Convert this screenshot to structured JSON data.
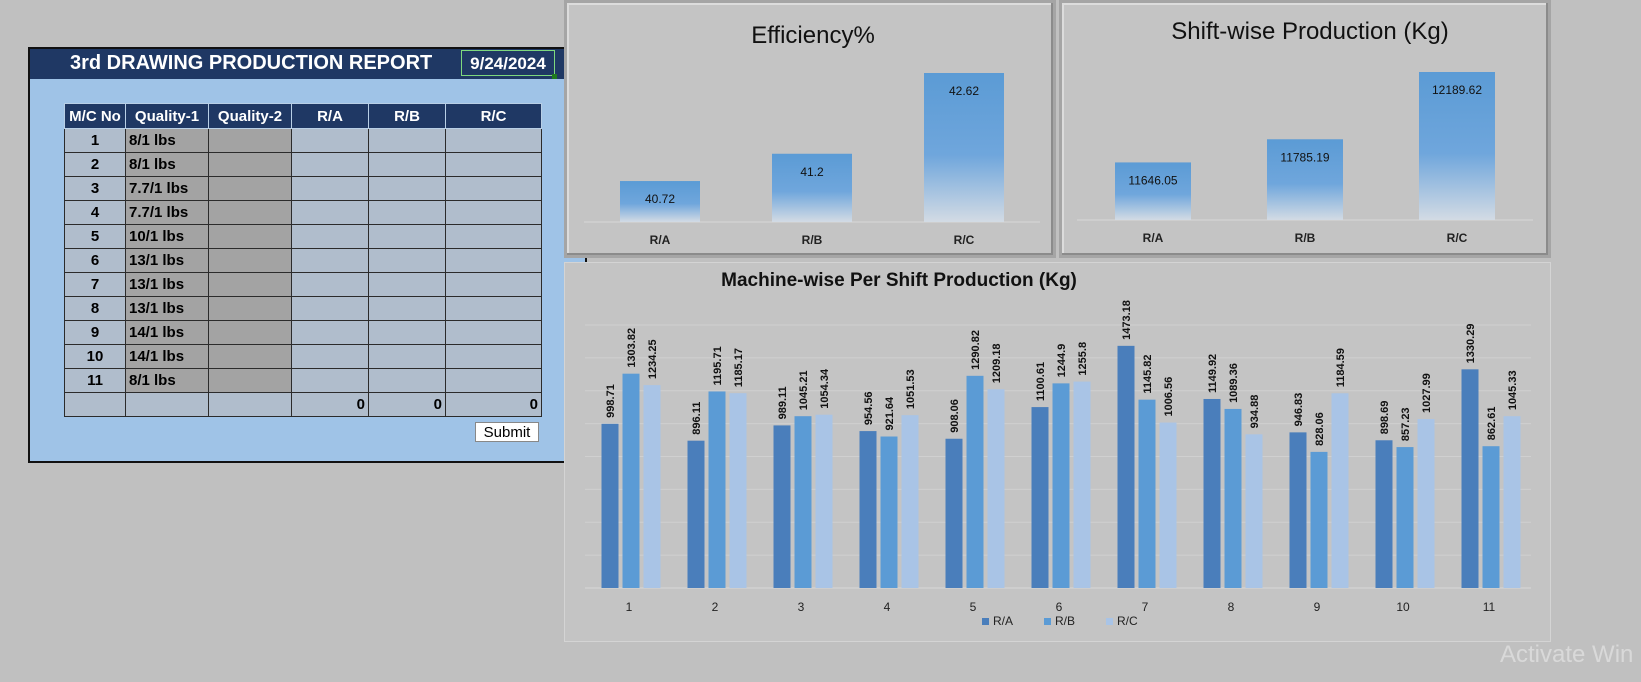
{
  "report": {
    "title": "3rd DRAWING PRODUCTION REPORT",
    "date": "9/24/2024",
    "columns": [
      "M/C No",
      "Quality-1",
      "Quality-2",
      "R/A",
      "R/B",
      "R/C"
    ],
    "rows": [
      {
        "no": "1",
        "q1": "8/1 lbs"
      },
      {
        "no": "2",
        "q1": "8/1 lbs"
      },
      {
        "no": "3",
        "q1": "7.7/1 lbs"
      },
      {
        "no": "4",
        "q1": "7.7/1 lbs"
      },
      {
        "no": "5",
        "q1": "10/1 lbs"
      },
      {
        "no": "6",
        "q1": "13/1 lbs"
      },
      {
        "no": "7",
        "q1": "13/1 lbs"
      },
      {
        "no": "8",
        "q1": "13/1 lbs"
      },
      {
        "no": "9",
        "q1": "14/1 lbs"
      },
      {
        "no": "10",
        "q1": "14/1 lbs"
      },
      {
        "no": "11",
        "q1": "8/1 lbs"
      }
    ],
    "totals": {
      "ra": "0",
      "rb": "0",
      "rc": "0"
    },
    "submit_label": "Submit"
  },
  "colors": {
    "header_navy": "#1f3864",
    "form_blue": "#9fc3e7",
    "ra": "#4a7ebb",
    "rb": "#5b9bd5",
    "rc": "#a9c4e6"
  },
  "watermark": "Activate Win",
  "chart_data": [
    {
      "type": "bar",
      "title": "Efficiency%",
      "categories": [
        "R/A",
        "R/B",
        "R/C"
      ],
      "values": [
        40.72,
        41.2,
        42.62
      ],
      "value_labels": [
        "40.72",
        "41.2",
        "42.62"
      ],
      "grid": false,
      "legend": "none"
    },
    {
      "type": "bar",
      "title": "Shift-wise Production (Kg)",
      "categories": [
        "R/A",
        "R/B",
        "R/C"
      ],
      "values": [
        11646.05,
        11785.19,
        12189.62
      ],
      "value_labels": [
        "11646.05",
        "11785.19",
        "12189.62"
      ],
      "grid": false,
      "legend": "none"
    },
    {
      "type": "bar",
      "title": "Machine-wise Per Shift Production (Kg)",
      "categories": [
        "1",
        "2",
        "3",
        "4",
        "5",
        "6",
        "7",
        "8",
        "9",
        "10",
        "11"
      ],
      "series": [
        {
          "name": "R/A",
          "values": [
            998.71,
            896.11,
            989.11,
            954.56,
            908.06,
            1100.61,
            1473.18,
            1149.92,
            946.83,
            898.69,
            1330.29
          ],
          "labels": [
            "998.71",
            "896.11",
            "989.11",
            "954.56",
            "908.06",
            "1100.61",
            "1473.18",
            "1149.92",
            "946.83",
            "898.69",
            "1330.29"
          ]
        },
        {
          "name": "R/B",
          "values": [
            1303.82,
            1195.71,
            1045.21,
            921.64,
            1290.82,
            1244.9,
            1145.82,
            1089.36,
            828.06,
            857.23,
            862.61
          ],
          "labels": [
            "1303.82",
            "1195.71",
            "1045.21",
            "921.64",
            "1290.82",
            "1244.9",
            "1145.82",
            "1089.36",
            "828.06",
            "857.23",
            "862.61"
          ]
        },
        {
          "name": "R/C",
          "values": [
            1234.25,
            1185.17,
            1054.34,
            1051.53,
            1209.18,
            1255.8,
            1006.56,
            934.88,
            1184.59,
            1027.99,
            1045.33
          ],
          "labels": [
            "1234.25",
            "1185.17",
            "1054.34",
            "1051.53",
            "1209.18",
            "1255.8",
            "1006.56",
            "934.88",
            "1184.59",
            "1027.99",
            "1045.33"
          ]
        }
      ],
      "ylim": [
        0,
        1600
      ],
      "grid": true,
      "legend": "bottom"
    }
  ]
}
